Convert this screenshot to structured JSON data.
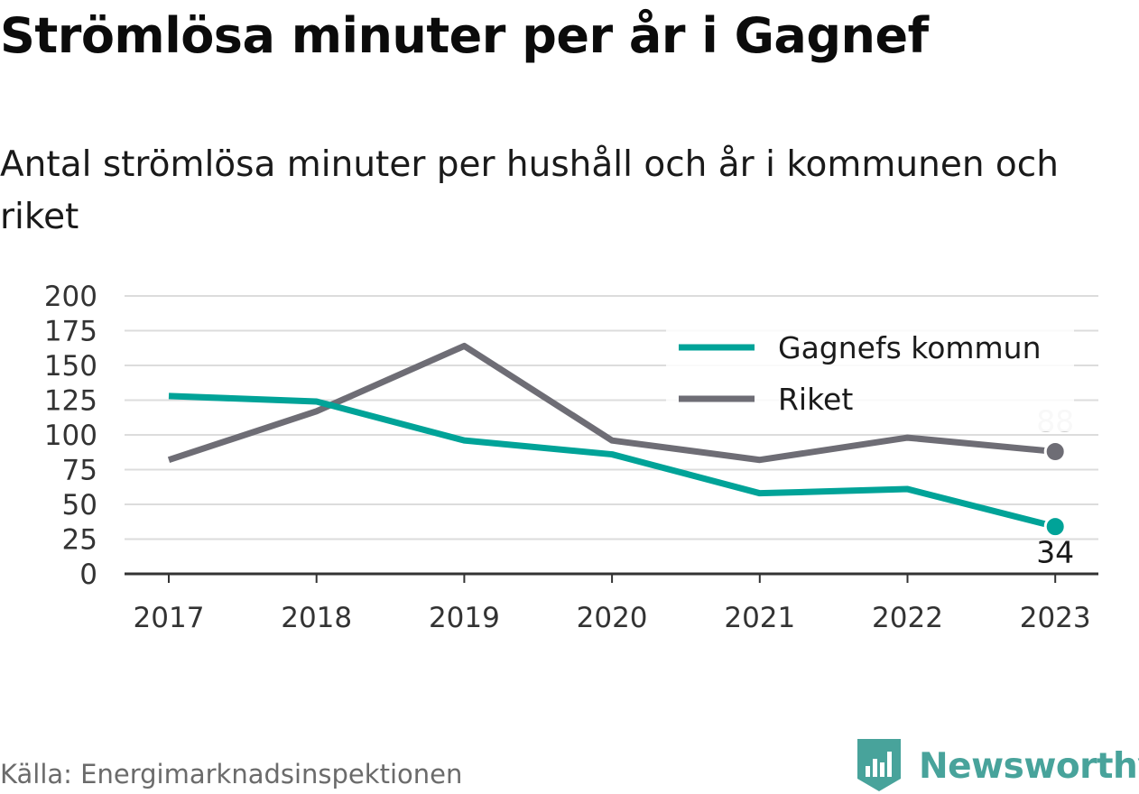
{
  "title": "Strömlösa minuter per år i Gagnef",
  "subtitle": "Antal strömlösa minuter per hushåll och år i kommunen och riket",
  "source": "Källa: Energimarknadsinspektionen",
  "brand": {
    "name": "Newsworthy",
    "icon": "newsworthy-bar-chart-icon"
  },
  "chart_data": {
    "type": "line",
    "x": [
      "2017",
      "2018",
      "2019",
      "2020",
      "2021",
      "2022",
      "2023"
    ],
    "ylim": [
      0,
      200
    ],
    "yticks": [
      0,
      25,
      50,
      75,
      100,
      125,
      150,
      175,
      200
    ],
    "grid": true,
    "legend_position": "top-right",
    "series": [
      {
        "name": "Gagnefs kommun",
        "color": "#00a398",
        "values": [
          128,
          124,
          96,
          86,
          58,
          61,
          34
        ],
        "end_label": "34"
      },
      {
        "name": "Riket",
        "color": "#6e6d75",
        "values": [
          82,
          117,
          164,
          96,
          82,
          98,
          88
        ],
        "end_label": "88"
      }
    ]
  }
}
